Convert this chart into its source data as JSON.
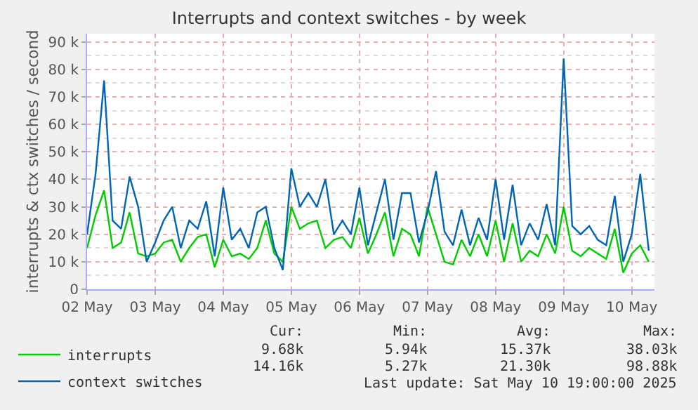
{
  "chart_data": {
    "type": "line",
    "title": "Interrupts and context switches - by week",
    "ylabel": "interrupts & ctx switches / second",
    "x": [
      "2025-05-02T12:00",
      "2025-05-02T15:00",
      "2025-05-02T18:00",
      "2025-05-02T21:00",
      "2025-05-03T00:00",
      "2025-05-03T03:00",
      "2025-05-03T06:00",
      "2025-05-03T09:00",
      "2025-05-03T12:00",
      "2025-05-03T15:00",
      "2025-05-03T18:00",
      "2025-05-03T21:00",
      "2025-05-04T00:00",
      "2025-05-04T03:00",
      "2025-05-04T06:00",
      "2025-05-04T09:00",
      "2025-05-04T12:00",
      "2025-05-04T15:00",
      "2025-05-04T18:00",
      "2025-05-04T21:00",
      "2025-05-05T00:00",
      "2025-05-05T03:00",
      "2025-05-05T06:00",
      "2025-05-05T09:00",
      "2025-05-05T12:00",
      "2025-05-05T15:00",
      "2025-05-05T18:00",
      "2025-05-05T21:00",
      "2025-05-06T00:00",
      "2025-05-06T03:00",
      "2025-05-06T06:00",
      "2025-05-06T09:00",
      "2025-05-06T12:00",
      "2025-05-06T15:00",
      "2025-05-06T18:00",
      "2025-05-06T21:00",
      "2025-05-07T00:00",
      "2025-05-07T03:00",
      "2025-05-07T06:00",
      "2025-05-07T09:00",
      "2025-05-07T12:00",
      "2025-05-07T15:00",
      "2025-05-07T18:00",
      "2025-05-07T21:00",
      "2025-05-08T00:00",
      "2025-05-08T03:00",
      "2025-05-08T06:00",
      "2025-05-08T09:00",
      "2025-05-08T12:00",
      "2025-05-08T15:00",
      "2025-05-08T18:00",
      "2025-05-08T21:00",
      "2025-05-09T00:00",
      "2025-05-09T03:00",
      "2025-05-09T06:00",
      "2025-05-09T09:00",
      "2025-05-09T12:00",
      "2025-05-09T15:00",
      "2025-05-09T18:00",
      "2025-05-09T21:00",
      "2025-05-10T00:00",
      "2025-05-10T03:00",
      "2025-05-10T06:00",
      "2025-05-10T09:00",
      "2025-05-10T12:00",
      "2025-05-10T15:00",
      "2025-05-10T18:00"
    ],
    "series": [
      {
        "name": "interrupts",
        "color": "#00cc00",
        "values": [
          15000,
          27000,
          36000,
          15000,
          17000,
          28000,
          13000,
          12000,
          13000,
          17000,
          18000,
          10000,
          15000,
          19000,
          20000,
          8000,
          18000,
          12000,
          13000,
          11000,
          15000,
          25000,
          13000,
          10000,
          30000,
          22000,
          24000,
          25000,
          15000,
          18000,
          19000,
          15000,
          26000,
          13000,
          20000,
          28000,
          12000,
          22000,
          20000,
          12000,
          30000,
          20000,
          10000,
          9000,
          18000,
          12000,
          20000,
          12000,
          25000,
          10000,
          24000,
          10000,
          14000,
          12000,
          20000,
          13000,
          30000,
          14000,
          12000,
          15000,
          13000,
          11000,
          22000,
          6000,
          13000,
          16000,
          10000
        ]
      },
      {
        "name": "context switches",
        "color": "#0066b3",
        "values": [
          20000,
          42000,
          76000,
          25000,
          22000,
          41000,
          30000,
          10000,
          17000,
          25000,
          30000,
          15000,
          25000,
          22000,
          32000,
          12000,
          37000,
          18000,
          22000,
          15000,
          28000,
          30000,
          15000,
          7000,
          44000,
          30000,
          35000,
          30000,
          40000,
          20000,
          25000,
          20000,
          37000,
          16000,
          28000,
          40000,
          18000,
          35000,
          35000,
          17000,
          28000,
          43000,
          21000,
          16000,
          29000,
          16000,
          26000,
          18000,
          40000,
          18000,
          38000,
          16000,
          24000,
          18000,
          31000,
          16000,
          84000,
          23000,
          20000,
          23000,
          18000,
          16000,
          34000,
          10000,
          20000,
          42000,
          14000
        ]
      }
    ],
    "xlim": [
      "2025-05-02T12:00",
      "2025-05-10T20:00"
    ],
    "xticks": [
      {
        "value": "2025-05-02T12:00",
        "label": "02 May"
      },
      {
        "value": "2025-05-03T12:00",
        "label": "03 May"
      },
      {
        "value": "2025-05-04T12:00",
        "label": "04 May"
      },
      {
        "value": "2025-05-05T12:00",
        "label": "05 May"
      },
      {
        "value": "2025-05-06T12:00",
        "label": "06 May"
      },
      {
        "value": "2025-05-07T12:00",
        "label": "07 May"
      },
      {
        "value": "2025-05-08T12:00",
        "label": "08 May"
      },
      {
        "value": "2025-05-09T12:00",
        "label": "09 May"
      },
      {
        "value": "2025-05-10T12:00",
        "label": "10 May"
      }
    ],
    "ylim": [
      0,
      93000
    ],
    "yticks": [
      {
        "value": 0,
        "label": "0"
      },
      {
        "value": 10000,
        "label": "10 k"
      },
      {
        "value": 20000,
        "label": "20 k"
      },
      {
        "value": 30000,
        "label": "30 k"
      },
      {
        "value": 40000,
        "label": "40 k"
      },
      {
        "value": 50000,
        "label": "50 k"
      },
      {
        "value": 60000,
        "label": "60 k"
      },
      {
        "value": 70000,
        "label": "70 k"
      },
      {
        "value": 80000,
        "label": "80 k"
      },
      {
        "value": 90000,
        "label": "90 k"
      }
    ],
    "grid": true,
    "legend": "bottom left",
    "marker": "none",
    "line_style": "solid",
    "annotations": [
      "Cur:",
      "Min:",
      "Avg:",
      "Max:",
      "9.68k",
      "5.94k",
      "15.37k",
      "38.03k",
      "14.16k",
      "5.27k",
      "21.30k",
      "98.88k",
      "Last update: Sat May 10 19:00:00 2025"
    ]
  }
}
